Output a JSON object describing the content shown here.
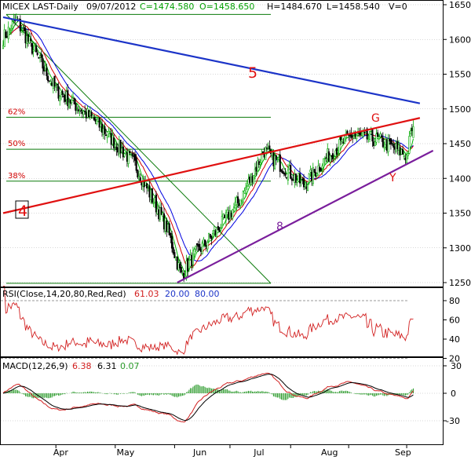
{
  "header": {
    "symbol": "MICEX LAST-Daily",
    "date": "09/07/2012",
    "close": "C=1474.580",
    "open": "O=1458.650",
    "high": "H=1484.670",
    "low": "L=1458.540",
    "volume": "V=0"
  },
  "colors": {
    "background": "#ffffff",
    "frame": "#000000",
    "up": "#00aa00",
    "down": "#000000",
    "ma_fast": "#00b400",
    "ma_mid": "#d40000",
    "ma_slow": "#0000e0",
    "trend_5": "#1c34c8",
    "trend_4": "#e01010",
    "trend_8": "#7a1e9c",
    "fib_lines": "#0a7a0a",
    "rsi": "#d22020",
    "macd": "#000000",
    "macd_signal": "#d22020",
    "macd_hist": "#2a9a2a"
  },
  "chart_data": [
    {
      "type": "candlestick",
      "name": "price",
      "ylim": [
        1240,
        1660
      ],
      "yticks": [
        1250,
        1300,
        1350,
        1400,
        1450,
        1500,
        1550,
        1600,
        1650
      ],
      "grid": true,
      "xticks": [
        "Apr",
        "May",
        "Jun",
        "Jul",
        "Aug",
        "Sep"
      ],
      "anchors": [
        [
          0,
          1602
        ],
        [
          10,
          1628
        ],
        [
          40,
          1528
        ],
        [
          70,
          1482
        ],
        [
          100,
          1420
        ],
        [
          124,
          1330
        ],
        [
          135,
          1260
        ],
        [
          145,
          1290
        ],
        [
          160,
          1320
        ],
        [
          180,
          1370
        ],
        [
          198,
          1440
        ],
        [
          210,
          1420
        ],
        [
          228,
          1390
        ],
        [
          245,
          1430
        ],
        [
          264,
          1462
        ],
        [
          285,
          1455
        ],
        [
          300,
          1440
        ],
        [
          306,
          1432
        ],
        [
          310,
          1472
        ]
      ],
      "annotations": {
        "wave_labels": [
          "5",
          "4",
          "8",
          "G",
          "Y"
        ],
        "fib_labels": [
          "62%",
          "50%",
          "38%"
        ]
      },
      "fib_levels": [
        1488,
        1442,
        1396
      ],
      "fib_bounds": [
        1636,
        1249
      ],
      "trendlines": {
        "line_5": {
          "from": [
            0,
            1632
          ],
          "to": [
            316,
            1508
          ]
        },
        "line_4": {
          "from": [
            0,
            1350
          ],
          "to": [
            316,
            1487
          ]
        },
        "line_8": {
          "from": [
            132,
            1250
          ],
          "to": [
            326,
            1440
          ]
        }
      }
    },
    {
      "type": "line",
      "name": "rsi",
      "label": "RSI(Close,14,20,80,Red,Red)",
      "value": "61.03",
      "lower": "20.00",
      "upper": "80.00",
      "ylim": [
        0,
        100
      ],
      "yticks": [
        20,
        40,
        60,
        80
      ]
    },
    {
      "type": "line",
      "name": "macd",
      "label": "MACD(12,26,9)",
      "macd_value": "6.38",
      "signal_value": "6.31",
      "hist_value": "0.07",
      "ylim": [
        -44,
        36
      ],
      "yticks": [
        -30,
        0,
        30
      ]
    }
  ]
}
